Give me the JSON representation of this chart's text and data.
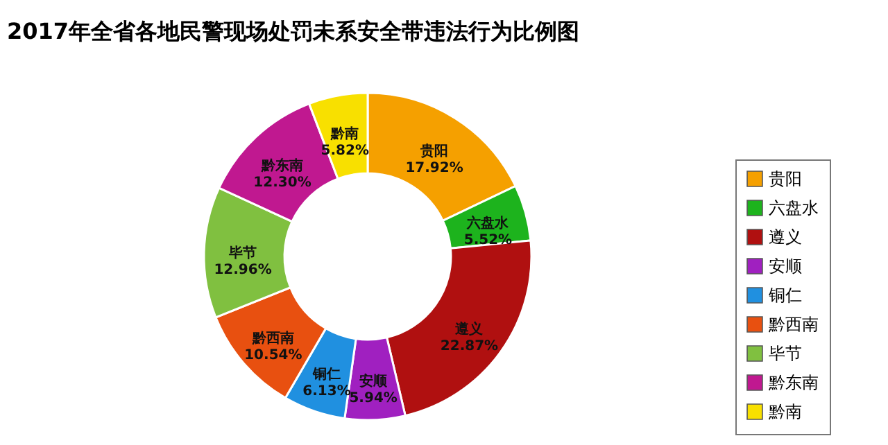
{
  "chart_data": {
    "type": "donut",
    "title": "2017年全省各地民警现场处罚未系安全带违法行为比例图",
    "categories": [
      "贵阳",
      "六盘水",
      "遵义",
      "安顺",
      "铜仁",
      "黔西南",
      "毕节",
      "黔东南",
      "黔南"
    ],
    "values": [
      17.92,
      5.52,
      22.87,
      5.94,
      6.13,
      10.54,
      12.96,
      12.3,
      5.82
    ],
    "value_labels": [
      "17.92%",
      "5.52%",
      "22.87%",
      "5.94%",
      "6.13%",
      "10.54%",
      "12.96%",
      "12.30%",
      "5.82%"
    ],
    "colors": [
      "#f5a000",
      "#1db31d",
      "#b01010",
      "#a020c0",
      "#2090e0",
      "#e85010",
      "#80c040",
      "#c01890",
      "#f8e000"
    ],
    "legend": "right"
  }
}
